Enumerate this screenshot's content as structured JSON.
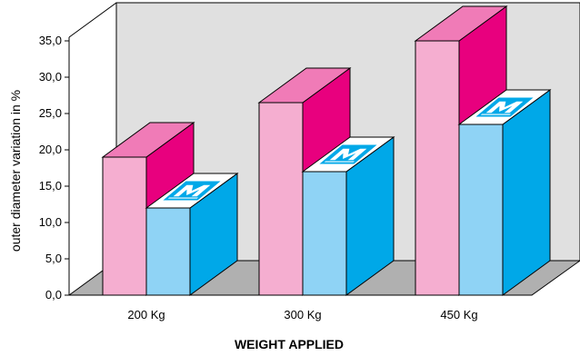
{
  "chart_data": {
    "type": "bar",
    "style": "3d-clustered",
    "categories": [
      "200 Kg",
      "300 Kg",
      "450 Kg"
    ],
    "series": [
      {
        "values": [
          19,
          26.5,
          35
        ],
        "front_color": "#f5aed0",
        "top_color": "#f07bb7",
        "side_color": "#e8007e"
      },
      {
        "values": [
          12,
          17,
          23.5
        ],
        "front_color": "#8fd3f5",
        "top_color": "#ffffff",
        "side_color": "#00a8e8"
      }
    ],
    "ylabel": "outer diameter variation in %",
    "xlabel": "WEIGHT APPLIED",
    "ylim": [
      0,
      35
    ],
    "yticks": [
      "0,0",
      "5,0",
      "10,0",
      "15,0",
      "20,0",
      "25,0",
      "30,0",
      "35,0"
    ],
    "background_wall_color": "#e0e0e0",
    "floor_color": "#b0b0b0",
    "logo_icon": "mm-logo-icon"
  }
}
